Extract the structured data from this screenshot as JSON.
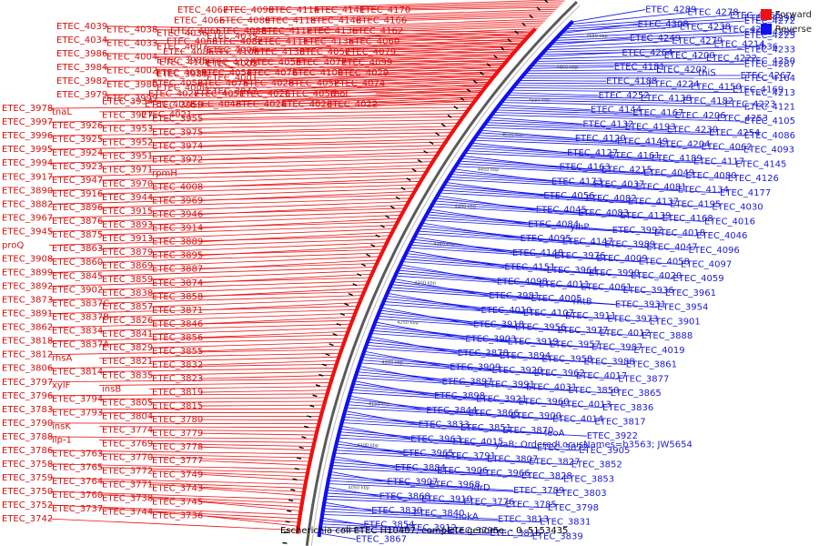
{
  "caption": "Escherichia coli ETEC H10407, complete genome. - 0..5153435",
  "legend": [
    {
      "label": "Forward",
      "color": "#ee1111"
    },
    {
      "label": "Reverse",
      "color": "#1111ee"
    }
  ],
  "colors": {
    "forward": "#ee1111",
    "reverse": "#1111ee",
    "backbone": "#888888"
  },
  "ticks": [
    "4650 kbp",
    "4600 kbp",
    "4550 kbp",
    "4500 kbp",
    "4450 kbp",
    "4400 kbp",
    "4350 kbp",
    "4300 kbp",
    "4250 kbp",
    "4200 kbp",
    "4150 kbp",
    "4100 kbp",
    "4050 kbp",
    "4000 kbp"
  ],
  "forward_labels": [
    "ETEC_4039",
    "ETEC_4038",
    "ETEC_4036",
    "ETEC_4035",
    "ETEC_4034",
    "ETEC_4033",
    "ETEC_4007",
    "ETEC_4006",
    "ETEC_3986",
    "ETEC_4004",
    "ETEC_3985",
    "ETEC_4003",
    "ETEC_3984",
    "ETEC_4002",
    "ETEC_3983",
    "ETEC_4001",
    "ETEC_3982",
    "ETEC_3980",
    "ETEC_4000",
    "ETEC_3942",
    "ETEC_3979",
    "ETEC_3999",
    "ETEC_3934",
    "ETEC_3959",
    "ETEC_3978",
    "tnaL",
    "ETEC_3927",
    "ETEC_3955",
    "ETEC_3997",
    "ETEC_3926",
    "ETEC_3953",
    "ETEC_3975",
    "ETEC_3996",
    "ETEC_3925",
    "ETEC_3952",
    "ETEC_3974",
    "ETEC_3995",
    "ETEC_3924",
    "ETEC_3951",
    "ETEC_3972",
    "ETEC_3994",
    "ETEC_3923",
    "ETEC_3971",
    "rpmH",
    "ETEC_3917",
    "ETEC_3947",
    "ETEC_3970",
    "ETEC_4008",
    "ETEC_3890",
    "ETEC_3916",
    "ETEC_3944",
    "ETEC_3969",
    "ETEC_3882",
    "ETEC_3896",
    "ETEC_3915",
    "ETEC_3946",
    "ETEC_3967",
    "ETEC_3876",
    "ETEC_3893",
    "ETEC_3914",
    "ETEC_3945",
    "ETEC_3875",
    "ETEC_3913",
    "ETEC_3889",
    "proQ",
    "ETEC_3863",
    "ETEC_3879",
    "ETEC_3895",
    "ETEC_3908",
    "ETEC_3860",
    "ETEC_3869",
    "ETEC_3887",
    "ETEC_3899",
    "ETEC_3845",
    "ETEC_3859",
    "ETEC_3874",
    "ETEC_3892",
    "ETEC_3902",
    "ETEC_3838",
    "ETEC_3858",
    "ETEC_3873",
    "ETEC_3837C",
    "ETEC_3857",
    "ETEC_3871",
    "ETEC_3891",
    "ETEC_3837B",
    "ETEC_3826",
    "ETEC_3846",
    "ETEC_3862",
    "ETEC_3834",
    "ETEC_3841",
    "ETEC_3856",
    "ETEC_3818",
    "ETEC_3837A",
    "ETEC_3829",
    "ETEC_3855",
    "ETEC_3812",
    "rhsA",
    "ETEC_3821",
    "ETEC_3832",
    "ETEC_3806",
    "ETEC_3814",
    "ETEC_3835",
    "ETEC_3823",
    "ETEC_3797",
    "xylF",
    "insB",
    "ETEC_3819",
    "ETEC_3796",
    "ETEC_3794",
    "ETEC_3805",
    "ETEC_3815",
    "ETEC_3783",
    "ETEC_3793",
    "ETEC_3804",
    "ETEC_3780",
    "ETEC_3790",
    "insK",
    "ETEC_3774",
    "ETEC_3779",
    "ETEC_3788",
    "ilp-1",
    "ETEC_3769",
    "ETEC_3778",
    "ETEC_3786",
    "ETEC_3763",
    "ETEC_3770",
    "ETEC_3777",
    "ETEC_3758",
    "ETEC_3765",
    "ETEC_3772",
    "ETEC_3749",
    "ETEC_3759",
    "ETEC_3764",
    "ETEC_3771",
    "ETEC_3743",
    "ETEC_3750",
    "ETEC_3760",
    "ETEC_3738",
    "ETEC_3745",
    "ETEC_3752",
    "ETEC_3737",
    "ETEC_3744",
    "ETEC_3736",
    "ETEC_3742"
  ],
  "top_labels": [
    "ETEC_4067",
    "ETEC_4090",
    "ETEC_4114",
    "ETEC_4141",
    "ETEC_4170",
    "ETEC_4066",
    "ETEC_4089",
    "ETEC_4113",
    "ETEC_4140",
    "ETEC_4166",
    "ETEC_4065",
    "ETEC_4088",
    "ETEC_4112",
    "ETEC_4136",
    "ETEC_4162",
    "ETEC_4063",
    "ETEC_4087",
    "ETEC_4111",
    "ETEC_4135",
    "ETEC_4060",
    "ETEC_4085",
    "ETEC_4109",
    "ETEC_4133",
    "ETEC_4057",
    "ETEC_4079",
    "ETEC_4102",
    "ETEC_4128",
    "ETEC_4055",
    "ETEC_4077",
    "ETEC_4099",
    "ETEC_4032",
    "ETEC_4054",
    "ETEC_4076",
    "ETEC_4100",
    "ETEC_4029",
    "ETEC_4053",
    "ETEC_4075",
    "ETEC_4028",
    "ETEC_4052",
    "ETEC_4074",
    "ETEC_4027",
    "ETEC_4051",
    "ETEC_4026",
    "ETEC_4050",
    "rhoL",
    "ETEC_4025",
    "ETEC_4048",
    "ETEC_4024",
    "ETEC_4023",
    "ETEC_4022",
    "ETEC_4021"
  ],
  "reverse_labels": [
    "ETEC_4289",
    "ETEC_4278",
    "ETEC_4265",
    "ETEC_4296",
    "ETEC_4272",
    "ETEC_4308",
    "ETEC_4238",
    "ETEC_4262",
    "ETEC_4286",
    "ETEC_4225",
    "ETEC_4249",
    "ETEC_4279",
    "ETEC_4214",
    "sb36",
    "ETEC_4233",
    "ETEC_4264",
    "ETEC_4200",
    "ETEC_4222",
    "ETEC_4250",
    "ETEC_4287",
    "ETEC_4181",
    "ETEC_4202",
    "thiS",
    "ETEC_4267",
    "ETEC_4164",
    "ETEC_4188",
    "ETEC_4224",
    "ETEC_4150",
    "ETEC_4169",
    "ETEC_4213",
    "ETEC_4252",
    "ETEC_4138",
    "ETEC_4182",
    "ETEC_4223",
    "ETEC_4121",
    "ETEC_4144",
    "ETEC_4167",
    "ETEC_4206",
    "ETEC_4253",
    "ETEC_4105",
    "ETEC_4132",
    "ETEC_4193",
    "ETEC_4230",
    "ETEC_4254",
    "ETEC_4086",
    "ETEC_4120",
    "ETEC_4149",
    "ETEC_4204",
    "ETEC_4062",
    "ETEC_4093",
    "ETEC_4127",
    "ETEC_4161",
    "ETEC_4189",
    "ETEC_4117",
    "ETEC_4145",
    "ETEC_4163",
    "ETEC_4215",
    "ETEC_4049",
    "ETEC_4080",
    "ETEC_4126",
    "ETEC_4173",
    "ETEC_4037",
    "ETEC_4081",
    "ETEC_4134",
    "ETEC_4177",
    "ETEC_4056",
    "ETEC_4082",
    "ETEC_4137",
    "ETEC_4195",
    "ETEC_4030",
    "ETEC_4045",
    "ETEC_4083",
    "ETEC_4139",
    "ETEC_4168",
    "ETEC_4016",
    "ETEC_4084",
    "yihP",
    "ETEC_3992",
    "ETEC_4018",
    "ETEC_4046",
    "ETEC_4095",
    "ETEC_4147",
    "ETEC_3989",
    "ETEC_4047",
    "ETEC_4096",
    "ETEC_4148",
    "ETEC_3976",
    "ETEC_4009",
    "ETEC_4058",
    "ETEC_4097",
    "ETEC_4151",
    "ETEC_3964",
    "ETEC_3990",
    "ETEC_4020",
    "ETEC_4059",
    "ETEC_4098",
    "ETEC_4011",
    "ETEC_4061",
    "ETEC_3936",
    "ETEC_3961",
    "ETEC_3981",
    "ETEC_4005",
    "rhtB",
    "ETEC_3931",
    "ETEC_3954",
    "ETEC_4010",
    "ETEC_4107",
    "ETEC_3911",
    "ETEC_3973",
    "ETEC_3901",
    "ETEC_3918",
    "ETEC_3956",
    "ETEC_3977",
    "ETEC_4012",
    "ETEC_3888",
    "ETEC_3903",
    "ETEC_3919",
    "ETEC_3957",
    "ETEC_3987",
    "ETEC_4019",
    "ETEC_3878",
    "ETEC_3894",
    "ETEC_3958",
    "ETEC_3988",
    "ETEC_3861",
    "ETEC_3909",
    "ETEC_3920",
    "ETEC_3962",
    "ETEC_4017",
    "ETEC_3877",
    "ETEC_3897",
    "ETEC_3991",
    "ETEC_4031",
    "ETEC_3850",
    "ETEC_3865",
    "ETEC_3898",
    "ETEC_3921",
    "ETEC_3960",
    "ETEC_4013",
    "ETEC_3836",
    "ETEC_3844",
    "ETEC_3866",
    "ETEC_3900",
    "ETEC_4014",
    "ETEC_3817",
    "ETEC_3833",
    "ETEC_3851",
    "ETEC_3870",
    "leoA",
    "ETEC_3922",
    "ETEC_3963",
    "ETEC_4015",
    "yiaB; OrderedLocusNames=b3563; JW5654",
    "ETEC_3872",
    "ETEC_3905",
    "ETEC_3965",
    "ETEC_3791",
    "ETEC_3807",
    "ETEC_3827",
    "ETEC_3852",
    "ETEC_3884",
    "ETEC_3906",
    "ETEC_3966",
    "ETEC_3828",
    "ETEC_3853",
    "ETEC_3907",
    "ETEC_3968",
    "ldrD",
    "ETEC_3789",
    "ETEC_3803",
    "ETEC_3868",
    "ETEC_3910",
    "ETEC_3776",
    "ETEC_3785",
    "ETEC_3798",
    "ETEC_3830",
    "ETEC_3840",
    "hokA",
    "ETEC_3813",
    "ETEC_3831",
    "ETEC_3854",
    "ETEC_3912",
    "ETEC_3795",
    "ETEC_3816",
    "ETEC_3839",
    "ETEC_3867"
  ]
}
